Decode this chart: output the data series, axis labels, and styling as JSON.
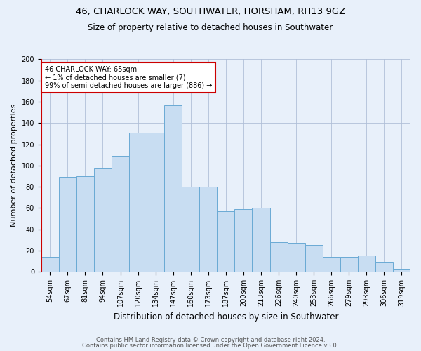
{
  "title1": "46, CHARLOCK WAY, SOUTHWATER, HORSHAM, RH13 9GZ",
  "title2": "Size of property relative to detached houses in Southwater",
  "xlabel": "Distribution of detached houses by size in Southwater",
  "ylabel": "Number of detached properties",
  "categories": [
    "54sqm",
    "67sqm",
    "81sqm",
    "94sqm",
    "107sqm",
    "120sqm",
    "134sqm",
    "147sqm",
    "160sqm",
    "173sqm",
    "187sqm",
    "200sqm",
    "213sqm",
    "226sqm",
    "240sqm",
    "253sqm",
    "266sqm",
    "279sqm",
    "293sqm",
    "306sqm",
    "319sqm"
  ],
  "bar_values": [
    14,
    89,
    90,
    97,
    109,
    131,
    131,
    157,
    80,
    80,
    57,
    59,
    60,
    28,
    27,
    25,
    14,
    14,
    15,
    9,
    3
  ],
  "bar_color": "#c8ddf2",
  "bar_edge_color": "#6aaad4",
  "vline_color": "#cc0000",
  "annotation_text": "46 CHARLOCK WAY: 65sqm\n← 1% of detached houses are smaller (7)\n99% of semi-detached houses are larger (886) →",
  "annotation_box_color": "white",
  "annotation_box_edge_color": "#cc0000",
  "footer1": "Contains HM Land Registry data © Crown copyright and database right 2024.",
  "footer2": "Contains public sector information licensed under the Open Government Licence v3.0.",
  "bg_color": "#e8f0fa",
  "ylim": [
    0,
    200
  ],
  "yticks": [
    0,
    20,
    40,
    60,
    80,
    100,
    120,
    140,
    160,
    180,
    200
  ],
  "title1_fontsize": 9.5,
  "title2_fontsize": 8.5,
  "ylabel_fontsize": 8,
  "xlabel_fontsize": 8.5,
  "tick_fontsize": 7,
  "annotation_fontsize": 7,
  "footer_fontsize": 6
}
